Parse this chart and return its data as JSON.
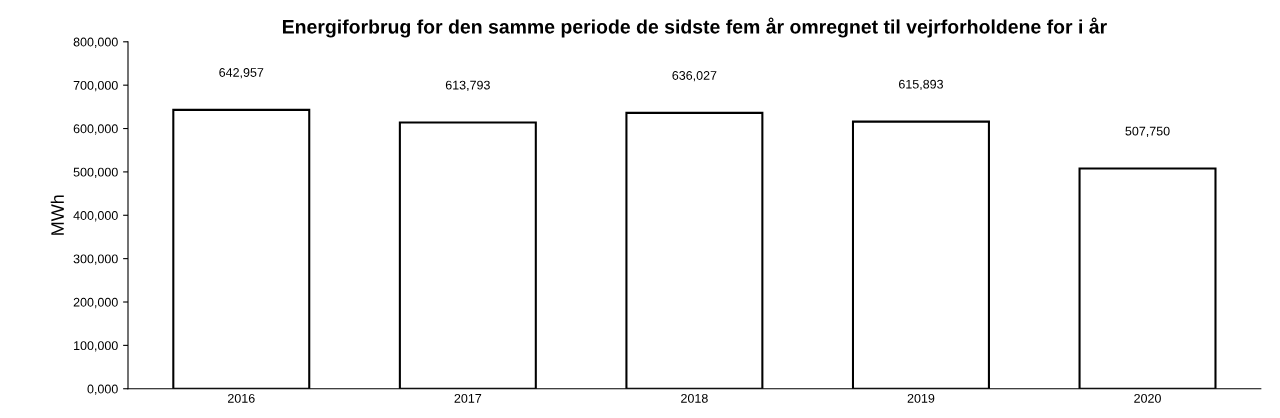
{
  "chart_data": {
    "type": "bar",
    "title": "Energiforbrug for den samme periode de sidste fem år omregnet til vejrforholdene for i år",
    "ylabel": "MWh",
    "categories": [
      "2016",
      "2017",
      "2018",
      "2019",
      "2020"
    ],
    "values": [
      642957,
      613793,
      636027,
      615893,
      507750
    ],
    "value_labels": [
      "642,957",
      "613,793",
      "636,027",
      "615,893",
      "507,750"
    ],
    "color": "#ffffff",
    "ylim": [
      0,
      800000
    ],
    "yticks": [
      {
        "value": 0,
        "label": "0,000"
      },
      {
        "value": 100000,
        "label": "100,000"
      },
      {
        "value": 200000,
        "label": "200,000"
      },
      {
        "value": 300000,
        "label": "300,000"
      },
      {
        "value": 400000,
        "label": "400,000"
      },
      {
        "value": 500000,
        "label": "500,000"
      },
      {
        "value": 600000,
        "label": "600,000"
      },
      {
        "value": 700000,
        "label": "700,000"
      },
      {
        "value": 800000,
        "label": "800,000"
      }
    ],
    "grid": false,
    "legend": false
  }
}
